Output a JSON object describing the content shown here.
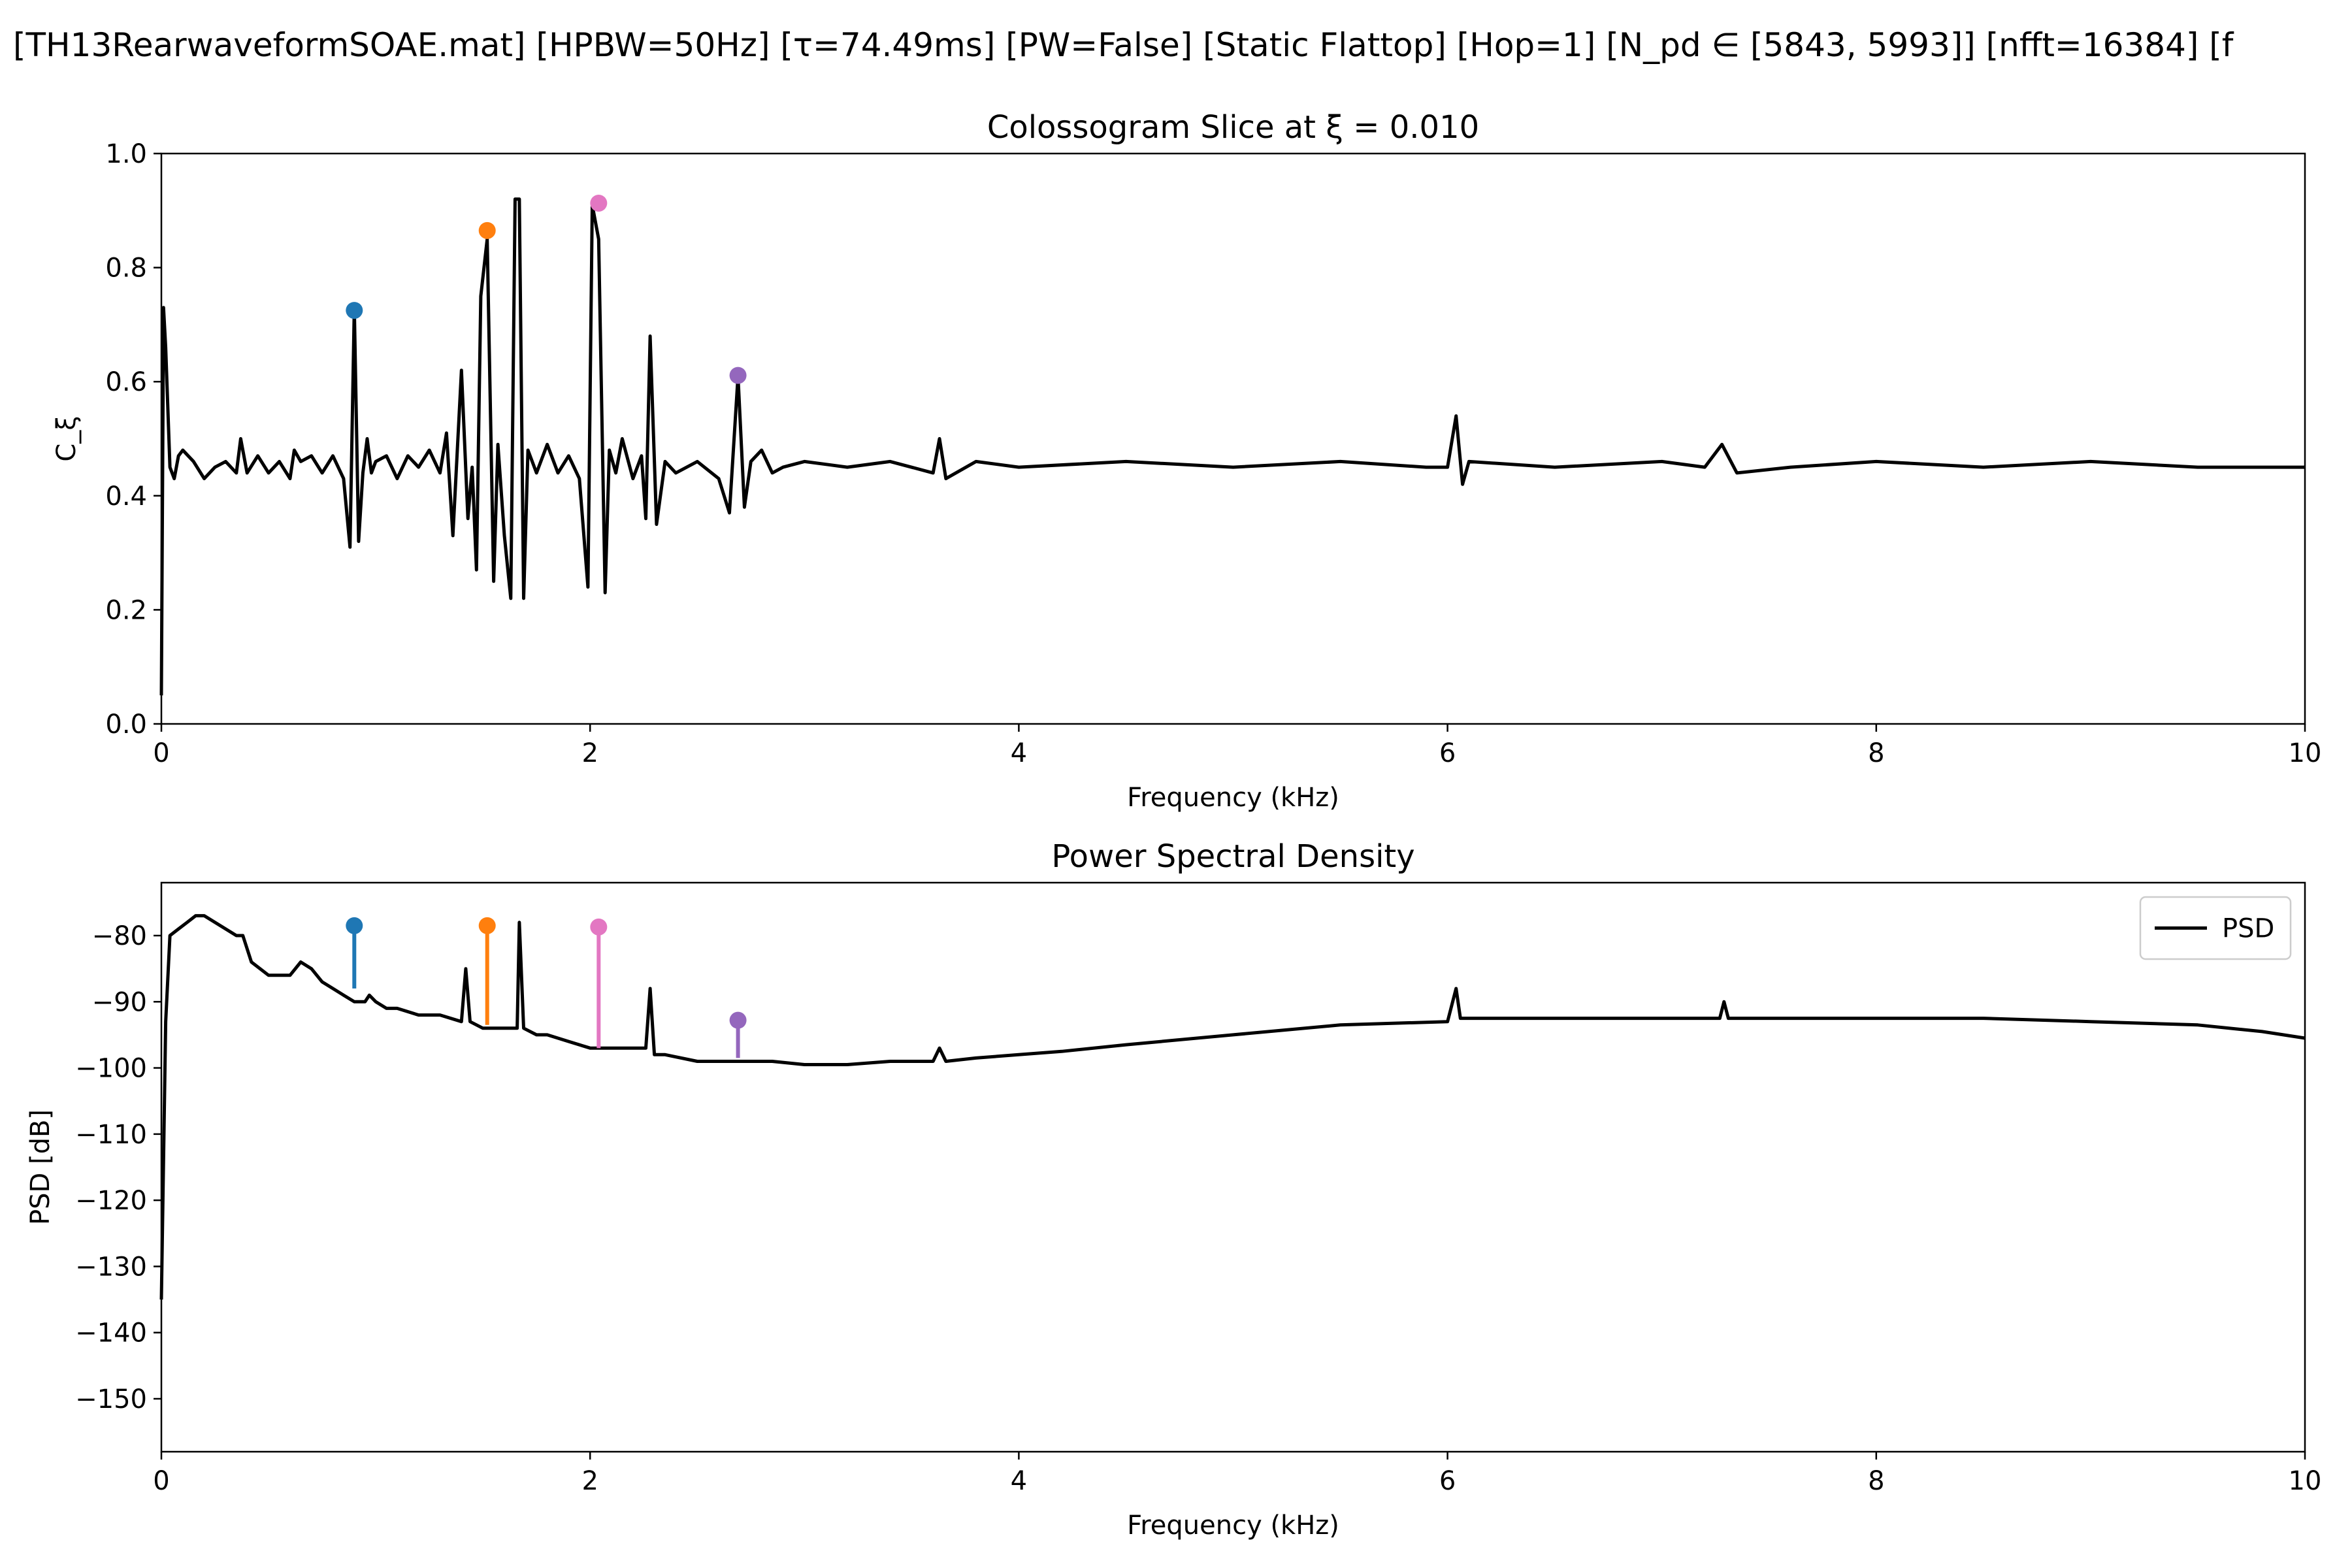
{
  "figure": {
    "suptitle": "[TH13RearwaveformSOAE.mat]   [HPBW=50Hz]   [τ=74.49ms]   [PW=False]   [Static Flattop]   [Hop=1]   [N_pd ∈ [5843, 5993]]   [nfft=16384]   [f"
  },
  "chart_data": [
    {
      "type": "line",
      "title": "Colossogram Slice at ξ = 0.010",
      "xlabel": "Frequency (kHz)",
      "ylabel": "C_ξ",
      "xlim": [
        0,
        10
      ],
      "ylim": [
        0,
        1.0
      ],
      "xticks": [
        "0",
        "2",
        "4",
        "6",
        "8",
        "10"
      ],
      "yticks": [
        "0.0",
        "0.2",
        "0.4",
        "0.6",
        "0.8",
        "1.0"
      ],
      "grid": false,
      "series": [
        {
          "color": "#000000",
          "x": [
            0,
            0.01,
            0.02,
            0.04,
            0.06,
            0.08,
            0.1,
            0.15,
            0.2,
            0.25,
            0.3,
            0.35,
            0.37,
            0.4,
            0.45,
            0.5,
            0.55,
            0.6,
            0.62,
            0.65,
            0.7,
            0.75,
            0.8,
            0.85,
            0.88,
            0.9,
            0.92,
            0.94,
            0.96,
            0.98,
            1.0,
            1.05,
            1.1,
            1.15,
            1.2,
            1.25,
            1.3,
            1.33,
            1.36,
            1.4,
            1.43,
            1.45,
            1.47,
            1.49,
            1.52,
            1.55,
            1.57,
            1.6,
            1.63,
            1.65,
            1.67,
            1.69,
            1.71,
            1.75,
            1.8,
            1.85,
            1.9,
            1.95,
            1.99,
            2.01,
            2.04,
            2.07,
            2.09,
            2.12,
            2.15,
            2.2,
            2.24,
            2.26,
            2.28,
            2.31,
            2.35,
            2.4,
            2.5,
            2.6,
            2.65,
            2.69,
            2.72,
            2.75,
            2.8,
            2.85,
            2.9,
            3.0,
            3.2,
            3.4,
            3.6,
            3.63,
            3.66,
            3.8,
            4.0,
            4.5,
            5.0,
            5.5,
            5.9,
            6.0,
            6.04,
            6.07,
            6.1,
            6.5,
            7.0,
            7.2,
            7.28,
            7.35,
            7.6,
            8.0,
            8.5,
            9.0,
            9.5,
            10.0
          ],
          "y": [
            0.05,
            0.73,
            0.66,
            0.45,
            0.43,
            0.47,
            0.48,
            0.46,
            0.43,
            0.45,
            0.46,
            0.44,
            0.5,
            0.44,
            0.47,
            0.44,
            0.46,
            0.43,
            0.48,
            0.46,
            0.47,
            0.44,
            0.47,
            0.43,
            0.31,
            0.73,
            0.32,
            0.44,
            0.5,
            0.44,
            0.46,
            0.47,
            0.43,
            0.47,
            0.45,
            0.48,
            0.44,
            0.51,
            0.33,
            0.62,
            0.36,
            0.45,
            0.27,
            0.75,
            0.85,
            0.25,
            0.49,
            0.33,
            0.22,
            0.92,
            0.92,
            0.22,
            0.48,
            0.44,
            0.49,
            0.44,
            0.47,
            0.43,
            0.24,
            0.91,
            0.85,
            0.23,
            0.48,
            0.44,
            0.5,
            0.43,
            0.47,
            0.36,
            0.68,
            0.35,
            0.46,
            0.44,
            0.46,
            0.43,
            0.37,
            0.61,
            0.38,
            0.46,
            0.48,
            0.44,
            0.45,
            0.46,
            0.45,
            0.46,
            0.44,
            0.5,
            0.43,
            0.46,
            0.45,
            0.46,
            0.45,
            0.46,
            0.45,
            0.45,
            0.54,
            0.42,
            0.46,
            0.45,
            0.46,
            0.45,
            0.49,
            0.44,
            0.45,
            0.46,
            0.45,
            0.46,
            0.45,
            0.45
          ]
        }
      ],
      "markers": [
        {
          "x": 0.9,
          "y": 0.725,
          "color": "#1f77b4"
        },
        {
          "x": 1.52,
          "y": 0.865,
          "color": "#ff7f0e"
        },
        {
          "x": 2.04,
          "y": 0.913,
          "color": "#e377c2"
        },
        {
          "x": 2.69,
          "y": 0.611,
          "color": "#9467bd"
        }
      ]
    },
    {
      "type": "line",
      "title": "Power Spectral Density",
      "xlabel": "Frequency (kHz)",
      "ylabel": "PSD [dB]",
      "xlim": [
        0,
        10
      ],
      "ylim": [
        -158,
        -72
      ],
      "xticks": [
        "0",
        "2",
        "4",
        "6",
        "8",
        "10"
      ],
      "yticks": [
        "−80",
        "−90",
        "−100",
        "−110",
        "−120",
        "−130",
        "−140",
        "−150"
      ],
      "grid": false,
      "legend": {
        "position": "top-right",
        "entries": [
          "PSD"
        ]
      },
      "series": [
        {
          "name": "PSD",
          "color": "#000000",
          "x": [
            0,
            0.02,
            0.04,
            0.08,
            0.12,
            0.16,
            0.2,
            0.25,
            0.3,
            0.35,
            0.38,
            0.42,
            0.5,
            0.6,
            0.65,
            0.7,
            0.75,
            0.8,
            0.85,
            0.9,
            0.95,
            0.97,
            1.0,
            1.05,
            1.1,
            1.2,
            1.3,
            1.4,
            1.42,
            1.44,
            1.5,
            1.6,
            1.66,
            1.67,
            1.69,
            1.75,
            1.8,
            1.9,
            2.0,
            2.1,
            2.2,
            2.26,
            2.28,
            2.3,
            2.35,
            2.5,
            2.7,
            2.85,
            3.0,
            3.2,
            3.4,
            3.6,
            3.63,
            3.66,
            3.8,
            4.0,
            4.2,
            4.5,
            5.0,
            5.5,
            6.0,
            6.04,
            6.06,
            6.5,
            7.0,
            7.27,
            7.29,
            7.31,
            7.5,
            8.0,
            8.5,
            9.0,
            9.5,
            9.8,
            10.0
          ],
          "y": [
            -135,
            -93,
            -80,
            -79,
            -78,
            -77,
            -77,
            -78,
            -79,
            -80,
            -80,
            -84,
            -86,
            -86,
            -84,
            -85,
            -87,
            -88,
            -89,
            -90,
            -90,
            -89,
            -90,
            -91,
            -91,
            -92,
            -92,
            -93,
            -85,
            -93,
            -94,
            -94,
            -94,
            -78,
            -94,
            -95,
            -95,
            -96,
            -97,
            -97,
            -97,
            -97,
            -88,
            -98,
            -98,
            -99,
            -99,
            -99,
            -99.5,
            -99.5,
            -99,
            -99,
            -97,
            -99,
            -98.5,
            -98,
            -97.5,
            -96.5,
            -95,
            -93.5,
            -93,
            -88,
            -92.5,
            -92.5,
            -92.5,
            -92.5,
            -90,
            -92.5,
            -92.5,
            -92.5,
            -92.5,
            -93,
            -93.5,
            -94.5,
            -95.5
          ]
        }
      ],
      "markers": [
        {
          "x": 0.9,
          "y": -78.5,
          "base": -88,
          "color": "#1f77b4"
        },
        {
          "x": 1.52,
          "y": -78.5,
          "base": -93.5,
          "color": "#ff7f0e"
        },
        {
          "x": 2.04,
          "y": -78.7,
          "base": -97,
          "color": "#e377c2"
        },
        {
          "x": 2.69,
          "y": -92.8,
          "base": -98.5,
          "color": "#9467bd"
        }
      ]
    }
  ]
}
